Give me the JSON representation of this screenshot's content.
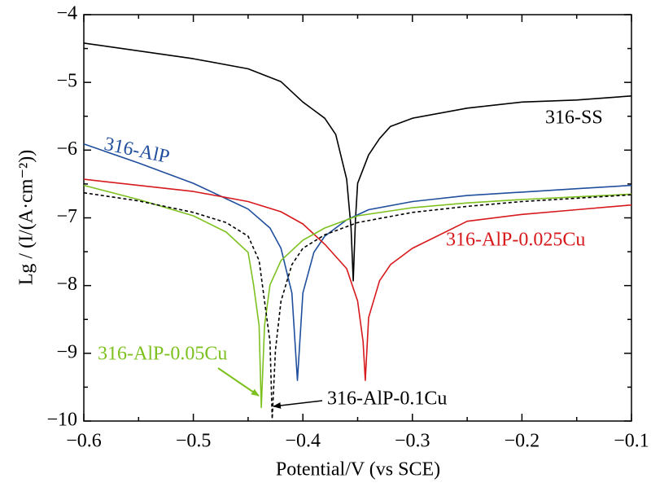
{
  "chart_data": {
    "type": "line",
    "xlabel": "Potential/V (vs SCE)",
    "ylabel": "Lg / (I/(A·cm⁻²))",
    "xlim": [
      -0.6,
      -0.1
    ],
    "ylim": [
      -10,
      -4
    ],
    "xticks": [
      {
        "value": -0.6,
        "label": "−0.6"
      },
      {
        "value": -0.5,
        "label": "−0.5"
      },
      {
        "value": -0.4,
        "label": "−0.4"
      },
      {
        "value": -0.3,
        "label": "−0.3"
      },
      {
        "value": -0.2,
        "label": "−0.2"
      },
      {
        "value": -0.1,
        "label": "−0.1"
      }
    ],
    "yticks": [
      {
        "value": -10,
        "label": "−10"
      },
      {
        "value": -9,
        "label": "−9"
      },
      {
        "value": -8,
        "label": "−8"
      },
      {
        "value": -7,
        "label": "−7"
      },
      {
        "value": -6,
        "label": "−6"
      },
      {
        "value": -5,
        "label": "−5"
      },
      {
        "value": -4,
        "label": "−4"
      }
    ],
    "xminorticks": [
      -0.55,
      -0.45,
      -0.35,
      -0.25,
      -0.15
    ],
    "yminorticks": [
      -9.5,
      -8.5,
      -7.5,
      -6.5,
      -5.5,
      -4.5
    ],
    "series": [
      {
        "name": "316-SS",
        "color": "#000000",
        "dash": false,
        "x": [
          -0.6,
          -0.5,
          -0.45,
          -0.42,
          -0.4,
          -0.38,
          -0.37,
          -0.36,
          -0.356,
          -0.354,
          -0.352,
          -0.35,
          -0.34,
          -0.33,
          -0.32,
          -0.3,
          -0.25,
          -0.2,
          -0.15,
          -0.1
        ],
        "values": [
          -4.42,
          -4.65,
          -4.8,
          -4.99,
          -5.29,
          -5.53,
          -5.77,
          -6.43,
          -7.15,
          -7.93,
          -7.03,
          -6.49,
          -6.07,
          -5.83,
          -5.65,
          -5.53,
          -5.38,
          -5.29,
          -5.26,
          -5.2
        ]
      },
      {
        "name": "316-AlP",
        "color": "#1f4e9c",
        "dash": false,
        "x": [
          -0.6,
          -0.55,
          -0.5,
          -0.45,
          -0.43,
          -0.42,
          -0.41,
          -0.405,
          -0.4,
          -0.39,
          -0.38,
          -0.36,
          -0.34,
          -0.3,
          -0.25,
          -0.2,
          -0.15,
          -0.1
        ],
        "values": [
          -5.91,
          -6.19,
          -6.49,
          -6.87,
          -7.15,
          -7.45,
          -8.11,
          -9.4,
          -8.11,
          -7.51,
          -7.27,
          -7.03,
          -6.88,
          -6.76,
          -6.67,
          -6.62,
          -6.57,
          -6.52
        ]
      },
      {
        "name": "316-AlP-0.025Cu",
        "color": "#d7191c",
        "dash": false,
        "x": [
          -0.6,
          -0.5,
          -0.45,
          -0.42,
          -0.4,
          -0.38,
          -0.36,
          -0.35,
          -0.345,
          -0.343,
          -0.34,
          -0.33,
          -0.32,
          -0.3,
          -0.25,
          -0.2,
          -0.15,
          -0.1
        ],
        "values": [
          -6.43,
          -6.61,
          -6.76,
          -6.91,
          -7.09,
          -7.39,
          -7.75,
          -8.23,
          -8.83,
          -9.4,
          -8.47,
          -7.93,
          -7.69,
          -7.45,
          -7.05,
          -6.95,
          -6.88,
          -6.81
        ]
      },
      {
        "name": "316-AlP-0.05Cu",
        "color": "#7dc11f",
        "dash": false,
        "x": [
          -0.6,
          -0.55,
          -0.5,
          -0.47,
          -0.45,
          -0.445,
          -0.44,
          -0.438,
          -0.435,
          -0.43,
          -0.42,
          -0.4,
          -0.38,
          -0.35,
          -0.3,
          -0.25,
          -0.2,
          -0.15,
          -0.1
        ],
        "values": [
          -6.52,
          -6.73,
          -6.97,
          -7.21,
          -7.51,
          -7.99,
          -8.59,
          -9.8,
          -8.59,
          -7.99,
          -7.63,
          -7.33,
          -7.15,
          -6.97,
          -6.85,
          -6.78,
          -6.73,
          -6.69,
          -6.65
        ]
      },
      {
        "name": "316-AlP-0.1Cu",
        "color": "#000000",
        "dash": true,
        "x": [
          -0.6,
          -0.55,
          -0.5,
          -0.47,
          -0.45,
          -0.44,
          -0.435,
          -0.43,
          -0.428,
          -0.425,
          -0.42,
          -0.41,
          -0.4,
          -0.38,
          -0.35,
          -0.3,
          -0.25,
          -0.2,
          -0.15,
          -0.1
        ],
        "values": [
          -6.63,
          -6.75,
          -6.92,
          -7.07,
          -7.27,
          -7.63,
          -8.23,
          -8.83,
          -9.97,
          -8.95,
          -8.23,
          -7.69,
          -7.45,
          -7.25,
          -7.07,
          -6.92,
          -6.83,
          -6.76,
          -6.71,
          -6.66
        ]
      }
    ]
  }
}
